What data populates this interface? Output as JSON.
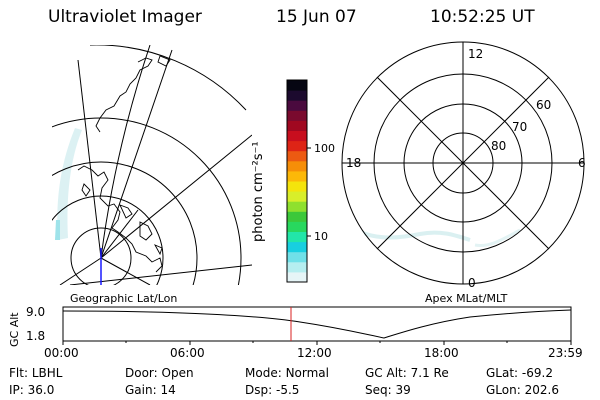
{
  "header": {
    "title": "Ultraviolet Imager",
    "date": "15 Jun 07",
    "time": "10:52:25 UT"
  },
  "colorbar": {
    "unit_label": "photon cm⁻²s⁻¹",
    "ticks": [
      "100",
      "10"
    ],
    "colors": [
      "#e6f5f7",
      "#b5eef0",
      "#6fe0e8",
      "#18cfe0",
      "#22e6a8",
      "#28d85e",
      "#3cc83a",
      "#8fe02e",
      "#d8ee2a",
      "#f4e40c",
      "#fcb808",
      "#f68e08",
      "#ec5a12",
      "#de2416",
      "#c80e1e",
      "#a00820",
      "#7a0a2e",
      "#4a0a3e",
      "#1c0a2e",
      "#060612"
    ]
  },
  "left_panel": {
    "label": "Geographic Lat/Lon"
  },
  "right_panel": {
    "label": "Apex MLat/MLT",
    "mlt_labels": {
      "top": "12",
      "left": "18",
      "right": "6",
      "bottom": "0"
    },
    "lat_labels": [
      "60",
      "70",
      "80"
    ]
  },
  "altitude_plot": {
    "ylabel": "GC Alt",
    "yticks": [
      "9.0",
      "1.8"
    ],
    "xticks": [
      "00:00",
      "06:00",
      "12:00",
      "18:00",
      "23:59"
    ],
    "current_time_marker_color": "#d82020"
  },
  "info": {
    "row1": [
      {
        "key": "Flt:",
        "value": "LBHL"
      },
      {
        "key": "Door:",
        "value": "Open"
      },
      {
        "key": "Mode:",
        "value": "Normal"
      },
      {
        "key": "GC Alt:",
        "value": "7.1 Re"
      },
      {
        "key": "GLat:",
        "value": "-69.2"
      }
    ],
    "row2": [
      {
        "key": "IP:",
        "value": "36.0"
      },
      {
        "key": "Gain:",
        "value": "14"
      },
      {
        "key": "Dsp:",
        "value": "-5.5"
      },
      {
        "key": "Seq:",
        "value": "39"
      },
      {
        "key": "GLon:",
        "value": "202.6"
      }
    ]
  }
}
